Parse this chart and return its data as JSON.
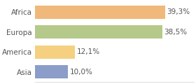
{
  "categories": [
    "Asia",
    "America",
    "Europa",
    "Africa"
  ],
  "values": [
    10.0,
    12.1,
    38.5,
    39.3
  ],
  "labels": [
    "10,0%",
    "12,1%",
    "38,5%",
    "39,3%"
  ],
  "bar_colors": [
    "#8b9dc8",
    "#f5d080",
    "#b5c98a",
    "#f0b87a"
  ],
  "background_color": "#ffffff",
  "xlim": [
    0,
    48
  ],
  "bar_height": 0.65,
  "label_fontsize": 7.5,
  "tick_fontsize": 7.5,
  "label_color": "#555555",
  "tick_color": "#555555",
  "spine_color": "#e0e0e0"
}
